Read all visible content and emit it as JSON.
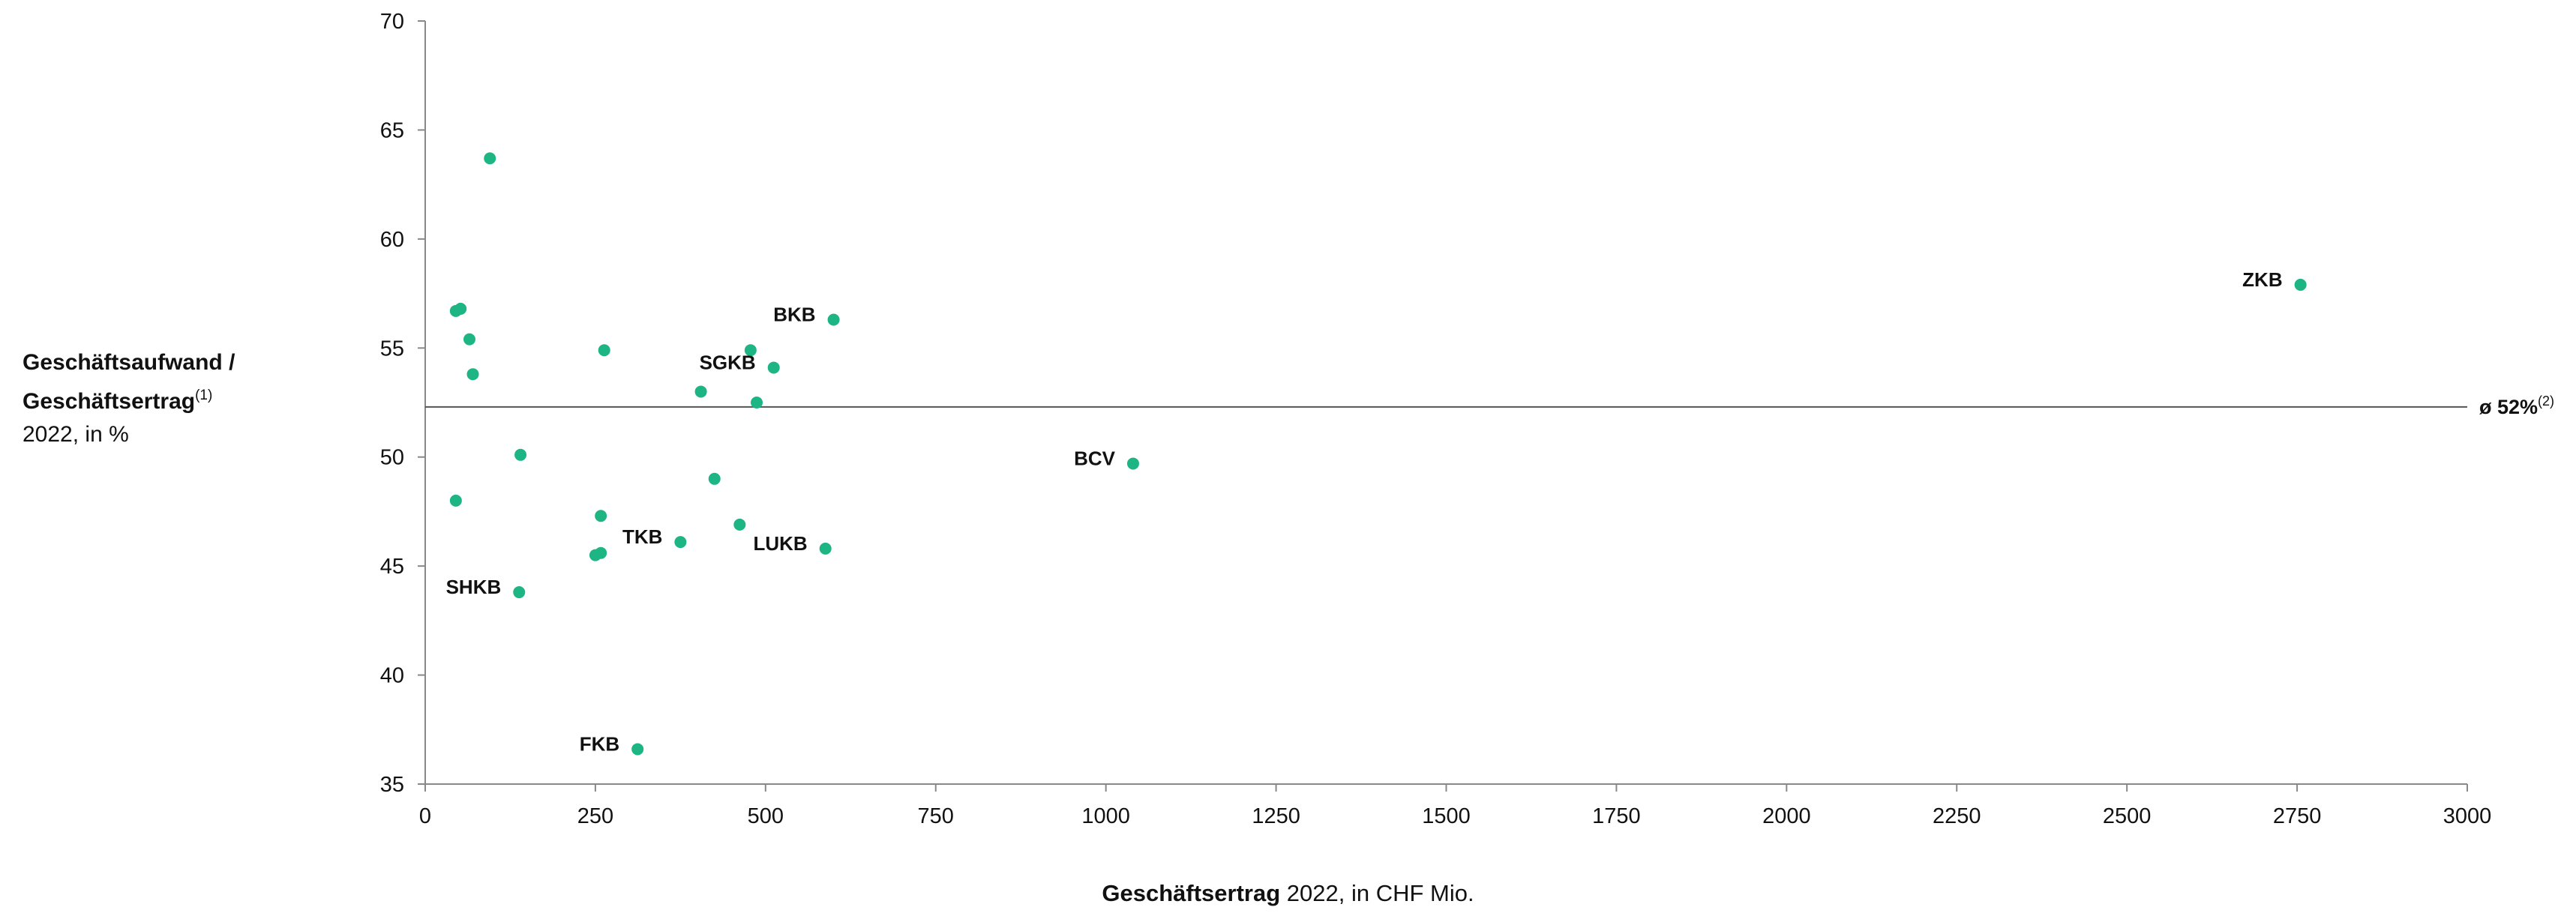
{
  "chart_data": {
    "type": "scatter",
    "title": "",
    "ylabel": {
      "line1": "Geschäftsaufwand /",
      "line2": "Geschäftsertrag",
      "line2_sup": "(1)",
      "line3": "2022, in %"
    },
    "xlabel": {
      "bold": "Geschäftsertrag",
      "rest": " 2022, in CHF Mio."
    },
    "xlim": [
      0,
      3000
    ],
    "ylim": [
      35,
      70
    ],
    "x_ticks": [
      0,
      250,
      500,
      750,
      1000,
      1250,
      1500,
      1750,
      2000,
      2250,
      2500,
      2750,
      3000
    ],
    "y_ticks": [
      35,
      40,
      45,
      50,
      55,
      60,
      65,
      70
    ],
    "grid": false,
    "marker_color": "#1DB584",
    "average_line": {
      "value": 52.3,
      "label": "ø 52%",
      "label_sup": "(2)",
      "color": "#555555"
    },
    "points": [
      {
        "x": 95,
        "y": 63.7,
        "label": ""
      },
      {
        "x": 45,
        "y": 56.7,
        "label": ""
      },
      {
        "x": 52,
        "y": 56.8,
        "label": ""
      },
      {
        "x": 65,
        "y": 55.4,
        "label": ""
      },
      {
        "x": 70,
        "y": 53.8,
        "label": ""
      },
      {
        "x": 263,
        "y": 54.9,
        "label": ""
      },
      {
        "x": 478,
        "y": 54.9,
        "label": ""
      },
      {
        "x": 512,
        "y": 54.1,
        "label": "SGKB"
      },
      {
        "x": 600,
        "y": 56.3,
        "label": "BKB"
      },
      {
        "x": 405,
        "y": 53.0,
        "label": ""
      },
      {
        "x": 487,
        "y": 52.5,
        "label": ""
      },
      {
        "x": 140,
        "y": 50.1,
        "label": ""
      },
      {
        "x": 45,
        "y": 48.0,
        "label": ""
      },
      {
        "x": 425,
        "y": 49.0,
        "label": ""
      },
      {
        "x": 258,
        "y": 47.3,
        "label": ""
      },
      {
        "x": 462,
        "y": 46.9,
        "label": ""
      },
      {
        "x": 375,
        "y": 46.1,
        "label": "TKB"
      },
      {
        "x": 250,
        "y": 45.5,
        "label": ""
      },
      {
        "x": 258,
        "y": 45.6,
        "label": ""
      },
      {
        "x": 588,
        "y": 45.8,
        "label": "LUKB"
      },
      {
        "x": 138,
        "y": 43.8,
        "label": "SHKB"
      },
      {
        "x": 312,
        "y": 36.6,
        "label": "FKB"
      },
      {
        "x": 1040,
        "y": 49.7,
        "label": "BCV"
      },
      {
        "x": 2755,
        "y": 57.9,
        "label": "ZKB"
      }
    ]
  }
}
